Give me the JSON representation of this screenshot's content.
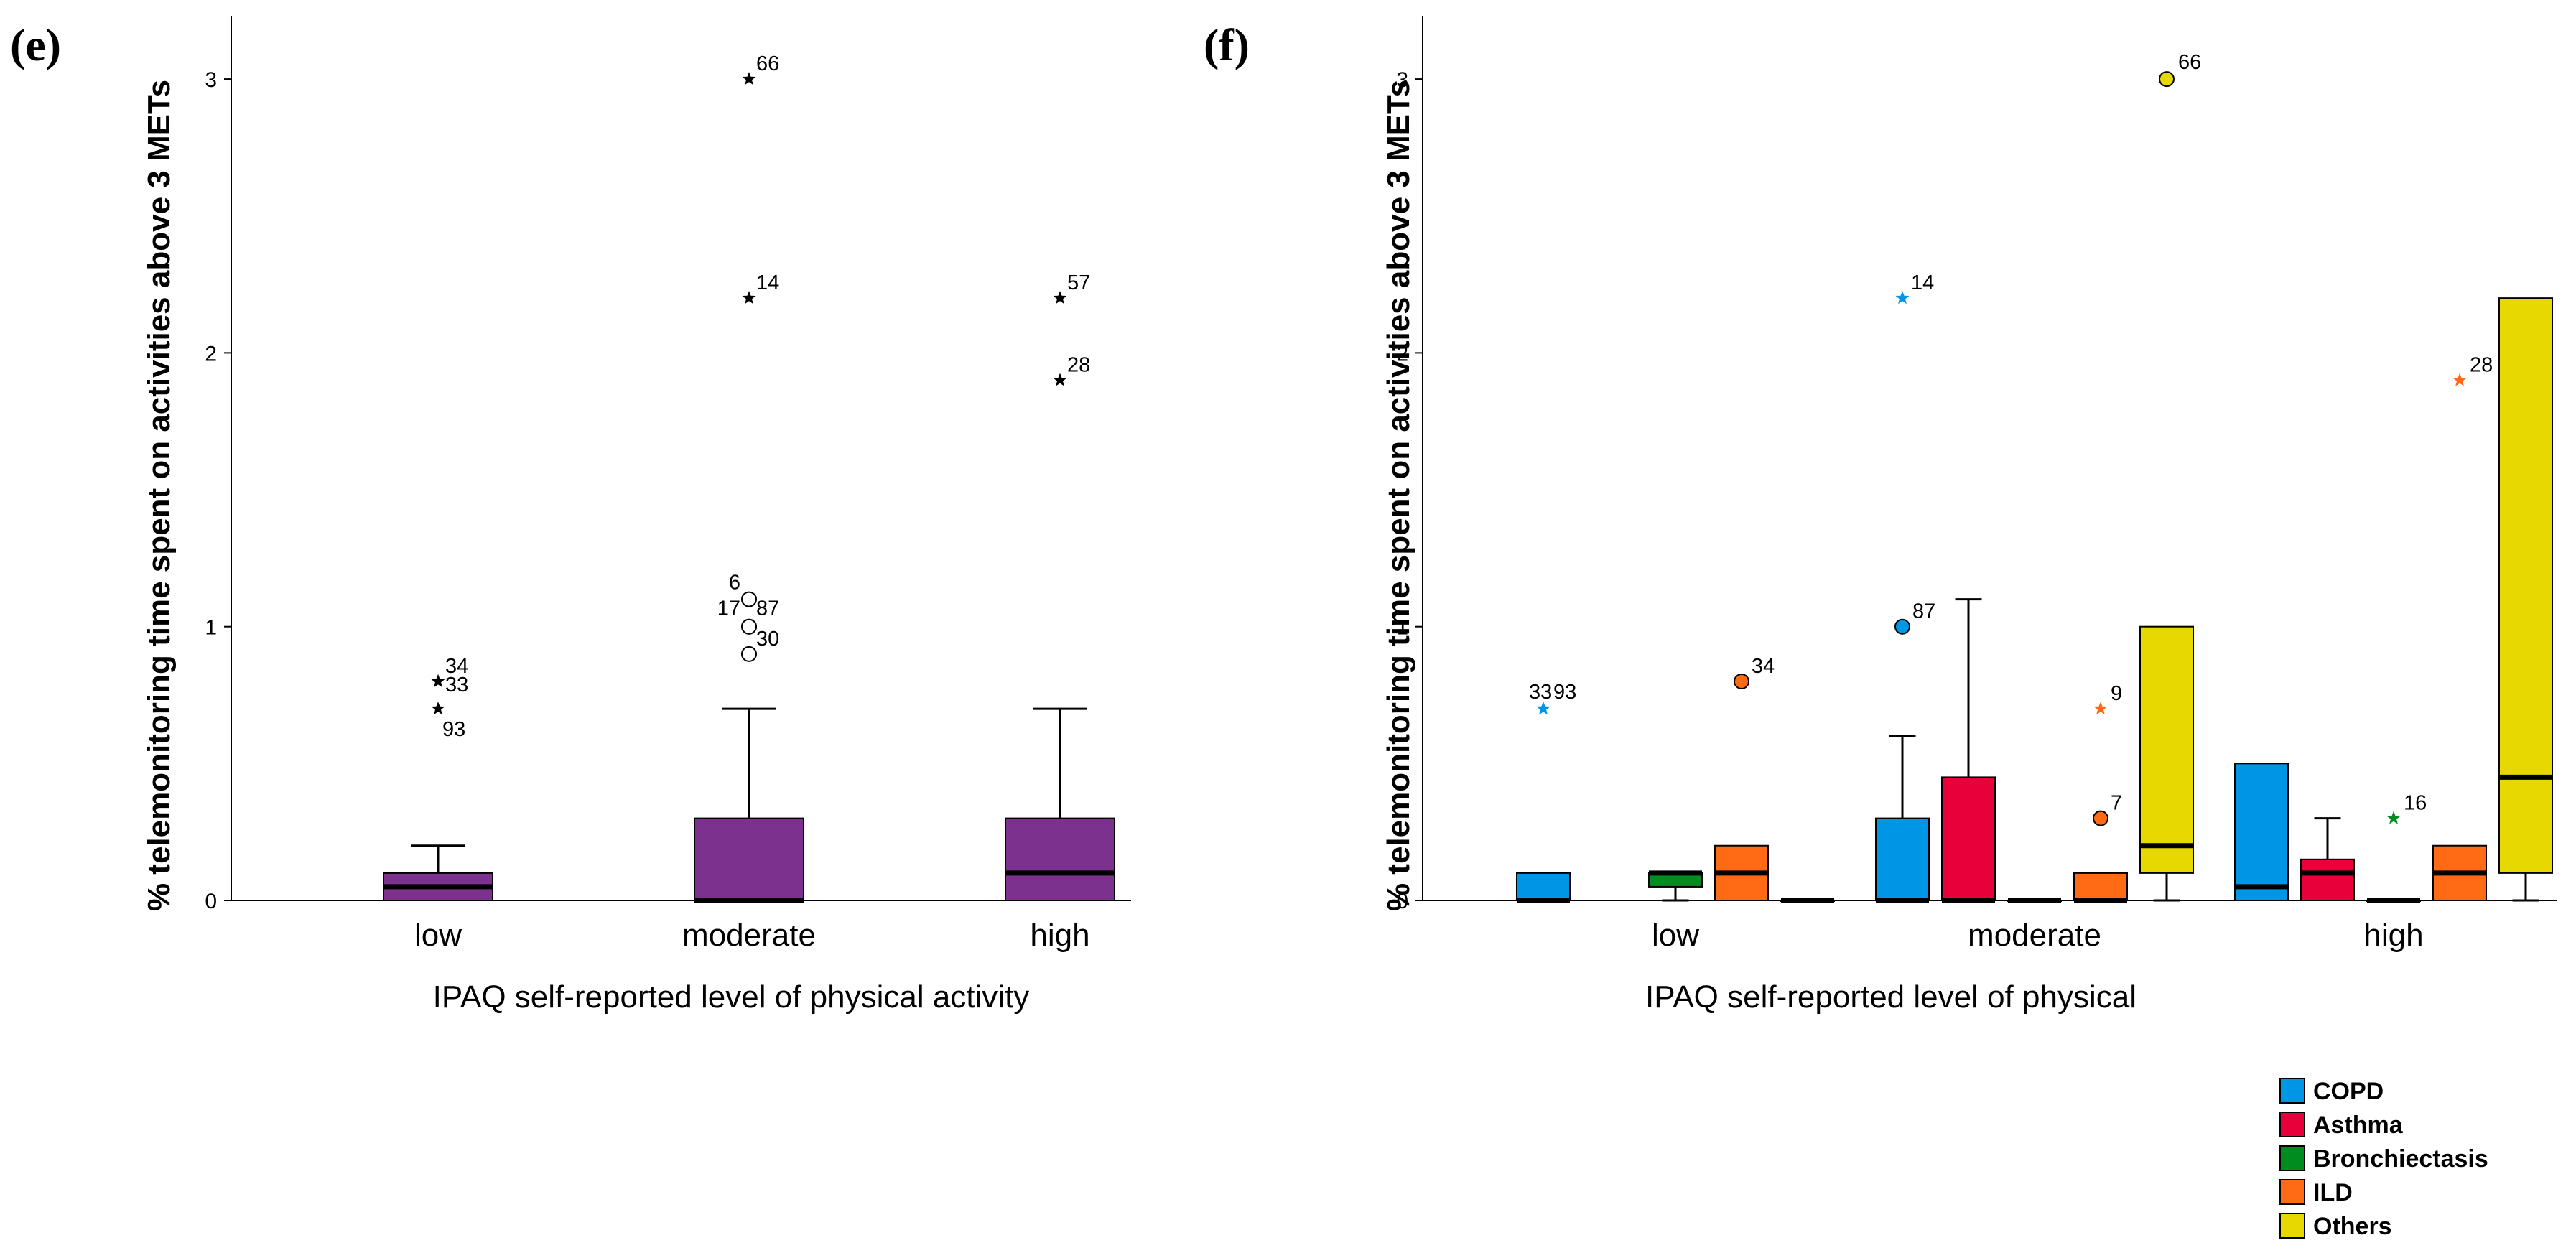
{
  "chart_data": [
    {
      "type": "boxplot",
      "panel_label": "(e)",
      "xlabel": "IPAQ self-reported level of physical activity",
      "ylabel": "% telemonitoring time spent on activities above 3 METs",
      "categories": [
        "low",
        "moderate",
        "high"
      ],
      "ylim": [
        0,
        3.2
      ],
      "yticks": [
        "0",
        "1",
        "2",
        "3"
      ],
      "color": "#7D318E",
      "boxes": [
        {
          "category": "low",
          "min": 0,
          "q1": 0,
          "median": 0.05,
          "q3": 0.1,
          "max": 0.2,
          "outliers": [
            {
              "value": 0.8,
              "label": "34",
              "marker": "star"
            },
            {
              "value": 0.8,
              "label": "33",
              "marker": "star"
            },
            {
              "value": 0.7,
              "label": "93",
              "marker": "star"
            }
          ]
        },
        {
          "category": "moderate",
          "min": 0,
          "q1": 0,
          "median": 0,
          "q3": 0.3,
          "max": 0.7,
          "outliers": [
            {
              "value": 3.0,
              "label": "66",
              "marker": "star"
            },
            {
              "value": 2.2,
              "label": "14",
              "marker": "star"
            },
            {
              "value": 1.1,
              "label": "6",
              "marker": "circle"
            },
            {
              "value": 1.0,
              "label": "17",
              "marker": "circle"
            },
            {
              "value": 1.0,
              "label": "87",
              "marker": "circle"
            },
            {
              "value": 0.9,
              "label": "30",
              "marker": "circle"
            }
          ]
        },
        {
          "category": "high",
          "min": 0,
          "q1": 0,
          "median": 0.1,
          "q3": 0.3,
          "max": 0.7,
          "outliers": [
            {
              "value": 2.2,
              "label": "57",
              "marker": "star"
            },
            {
              "value": 1.9,
              "label": "28",
              "marker": "star"
            }
          ]
        }
      ]
    },
    {
      "type": "boxplot",
      "panel_label": "(f)",
      "xlabel": "IPAQ self-reported level of physical",
      "ylabel": "% telemonitoring time spent on activities above 3 METs",
      "categories": [
        "low",
        "moderate",
        "high"
      ],
      "ylim": [
        0,
        3.2
      ],
      "yticks": [
        "0",
        "1",
        "2",
        "3"
      ],
      "legend_position": "bottom-right",
      "series": [
        {
          "name": "COPD",
          "color": "#0096E6"
        },
        {
          "name": "Asthma",
          "color": "#E8003A"
        },
        {
          "name": "Bronchiectasis",
          "color": "#008C1E"
        },
        {
          "name": "ILD",
          "color": "#FF6A14"
        },
        {
          "name": "Others",
          "color": "#E6D800"
        }
      ],
      "boxes": [
        {
          "category": "low",
          "series": "COPD",
          "min": 0,
          "q1": 0,
          "median": 0,
          "q3": 0.1,
          "max": 0.1,
          "outliers": [
            {
              "value": 0.7,
              "label": "33",
              "marker": "star"
            },
            {
              "value": 0.7,
              "label": "93",
              "marker": "star"
            }
          ]
        },
        {
          "category": "low",
          "series": "Bronchiectasis",
          "min": 0,
          "q1": 0.05,
          "median": 0.1,
          "q3": 0.1,
          "max": 0.1,
          "outliers": []
        },
        {
          "category": "low",
          "series": "ILD",
          "min": 0,
          "q1": 0,
          "median": 0.1,
          "q3": 0.2,
          "max": 0.2,
          "outliers": [
            {
              "value": 0.8,
              "label": "34",
              "marker": "circle"
            }
          ]
        },
        {
          "category": "low",
          "series": "Others",
          "min": 0,
          "q1": 0,
          "median": 0,
          "q3": 0,
          "max": 0,
          "outliers": []
        },
        {
          "category": "moderate",
          "series": "COPD",
          "min": 0,
          "q1": 0,
          "median": 0,
          "q3": 0.3,
          "max": 0.6,
          "outliers": [
            {
              "value": 2.2,
              "label": "14",
              "marker": "star"
            },
            {
              "value": 1.0,
              "label": "87",
              "marker": "circle"
            }
          ]
        },
        {
          "category": "moderate",
          "series": "Asthma",
          "min": 0,
          "q1": 0,
          "median": 0,
          "q3": 0.45,
          "max": 1.1,
          "outliers": []
        },
        {
          "category": "moderate",
          "series": "Bronchiectasis",
          "min": 0,
          "q1": 0,
          "median": 0,
          "q3": 0,
          "max": 0,
          "outliers": []
        },
        {
          "category": "moderate",
          "series": "ILD",
          "min": 0,
          "q1": 0,
          "median": 0,
          "q3": 0.1,
          "max": 0.1,
          "outliers": [
            {
              "value": 0.7,
              "label": "9",
              "marker": "star"
            },
            {
              "value": 0.3,
              "label": "7",
              "marker": "circle"
            }
          ]
        },
        {
          "category": "moderate",
          "series": "Others",
          "min": 0,
          "q1": 0.1,
          "median": 0.2,
          "q3": 1.0,
          "max": 1.0,
          "outliers": [
            {
              "value": 3.0,
              "label": "66",
              "marker": "circle"
            }
          ]
        },
        {
          "category": "high",
          "series": "COPD",
          "min": 0,
          "q1": 0,
          "median": 0.05,
          "q3": 0.5,
          "max": 0.5,
          "outliers": []
        },
        {
          "category": "high",
          "series": "Asthma",
          "min": 0,
          "q1": 0,
          "median": 0.1,
          "q3": 0.15,
          "max": 0.3,
          "outliers": []
        },
        {
          "category": "high",
          "series": "Bronchiectasis",
          "min": 0,
          "q1": 0,
          "median": 0,
          "q3": 0,
          "max": 0,
          "outliers": [
            {
              "value": 0.3,
              "label": "16",
              "marker": "star"
            }
          ]
        },
        {
          "category": "high",
          "series": "ILD",
          "min": 0,
          "q1": 0,
          "median": 0.1,
          "q3": 0.2,
          "max": 0.2,
          "outliers": [
            {
              "value": 1.9,
              "label": "28",
              "marker": "star"
            }
          ]
        },
        {
          "category": "high",
          "series": "Others",
          "min": 0,
          "q1": 0.1,
          "median": 0.45,
          "q3": 2.2,
          "max": 2.2,
          "outliers": []
        }
      ]
    }
  ]
}
